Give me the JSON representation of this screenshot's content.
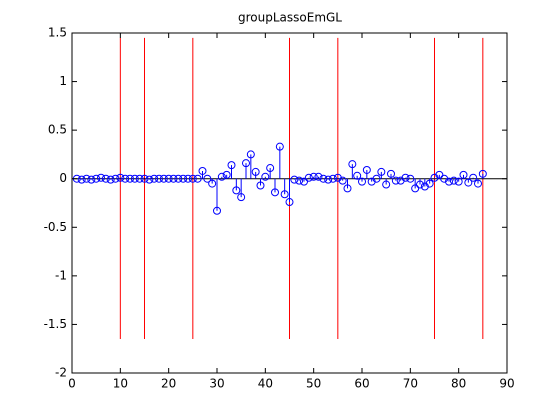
{
  "chart_data": {
    "type": "stem",
    "title": "groupLassoEmGL",
    "x": [
      1,
      2,
      3,
      4,
      5,
      6,
      7,
      8,
      9,
      10,
      11,
      12,
      13,
      14,
      15,
      16,
      17,
      18,
      19,
      20,
      21,
      22,
      23,
      24,
      25,
      26,
      27,
      28,
      29,
      30,
      31,
      32,
      33,
      34,
      35,
      36,
      37,
      38,
      39,
      40,
      41,
      42,
      43,
      44,
      45,
      46,
      47,
      48,
      49,
      50,
      51,
      52,
      53,
      54,
      55,
      56,
      57,
      58,
      59,
      60,
      61,
      62,
      63,
      64,
      65,
      66,
      67,
      68,
      69,
      70,
      71,
      72,
      73,
      74,
      75,
      76,
      77,
      78,
      79,
      80,
      81,
      82,
      83,
      84,
      85
    ],
    "values": [
      0,
      -0.01,
      0,
      -0.01,
      0,
      0.01,
      0,
      -0.01,
      0,
      0.01,
      0,
      0,
      0,
      0,
      0,
      -0.01,
      0,
      0,
      0,
      0,
      0,
      0,
      0,
      0,
      0,
      0,
      0.08,
      0,
      -0.05,
      -0.33,
      0.02,
      0.04,
      0.14,
      -0.12,
      -0.19,
      0.16,
      0.25,
      0.07,
      -0.07,
      0.02,
      0.11,
      -0.14,
      0.33,
      -0.16,
      -0.24,
      -0.01,
      -0.02,
      -0.03,
      0.01,
      0.02,
      0.02,
      0,
      -0.01,
      0,
      0.01,
      -0.02,
      -0.1,
      0.15,
      0.03,
      -0.03,
      0.09,
      -0.03,
      0,
      0.07,
      -0.06,
      0.05,
      -0.02,
      -0.02,
      0.01,
      0,
      -0.1,
      -0.06,
      -0.08,
      -0.05,
      0.01,
      0.04,
      0,
      -0.03,
      -0.02,
      -0.03,
      0.04,
      -0.04,
      0.01,
      -0.05,
      0.05
    ],
    "color": "#0000ff",
    "group_boundaries": [
      10,
      15,
      25,
      45,
      55,
      75,
      85
    ],
    "boundary_range": [
      -1.65,
      1.45
    ],
    "boundary_color": "#ff0000",
    "xlim": [
      0,
      90
    ],
    "xticks": [
      0,
      10,
      20,
      30,
      40,
      50,
      60,
      70,
      80,
      90
    ],
    "ylim": [
      -2,
      1.5
    ],
    "yticks": [
      -2,
      -1.5,
      -1,
      -0.5,
      0,
      0.5,
      1,
      1.5
    ],
    "grid": false
  }
}
